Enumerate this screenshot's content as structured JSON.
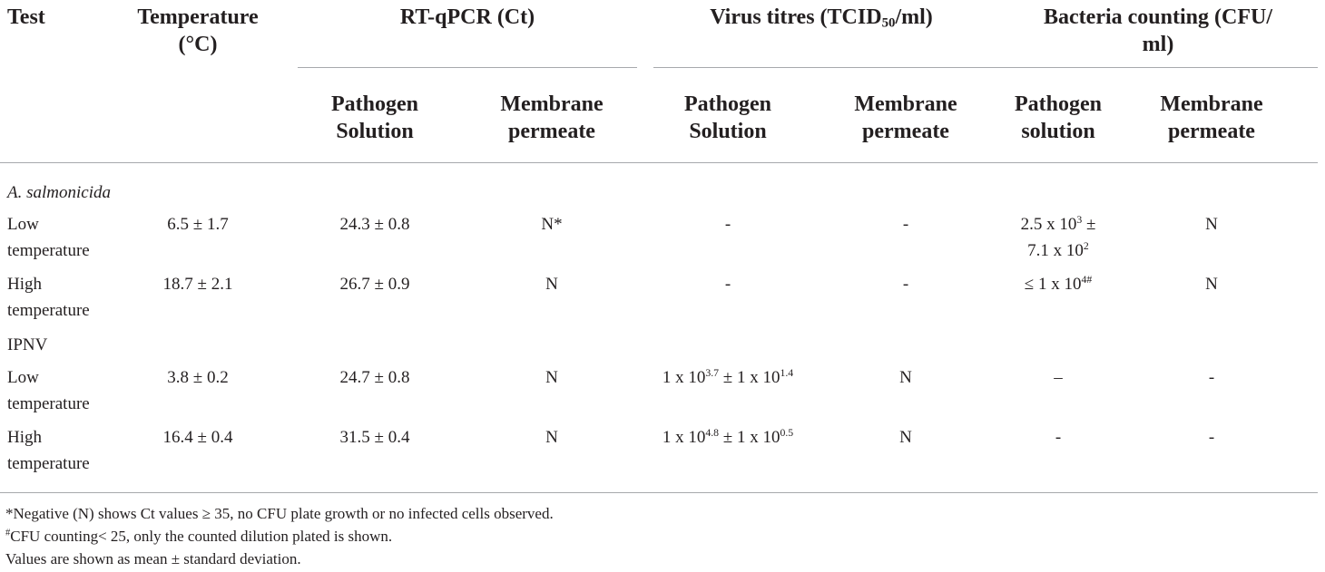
{
  "table": {
    "headers": {
      "test": "Test",
      "temperature_line1": "Temperature",
      "temperature_line2": "(°C)",
      "rtqpcr": "RT-qPCR (Ct)",
      "virus_pre": "Virus titres (TCID",
      "virus_sub": "50",
      "virus_post": "/ml)",
      "bacteria_line1": "Bacteria counting (CFU/",
      "bacteria_line2": "ml)",
      "sub": {
        "pathogen_solution_1": "Pathogen",
        "pathogen_solution_2": "Solution",
        "membrane_1": "Membrane",
        "membrane_2": "permeate",
        "pathogen_solution_lower_2": "solution"
      }
    },
    "groups": {
      "a_salmonicida": "A. salmonicida",
      "ipnv": "IPNV"
    },
    "rows": {
      "as_low": {
        "label1": "Low",
        "label2": "temperature",
        "temperature": "6.5 ± 1.7",
        "rt_pathogen": "24.3 ± 0.8",
        "rt_membrane": "N*",
        "virus_pathogen": "-",
        "virus_membrane": "-",
        "bact_pathogen_a": "2.5 x 10",
        "bact_pathogen_a_sup": "3",
        "bact_pathogen_b": " ±",
        "bact_pathogen_c": "7.1 x 10",
        "bact_pathogen_c_sup": "2",
        "bact_membrane": "N"
      },
      "as_high": {
        "label1": "High",
        "label2": "temperature",
        "temperature": "18.7 ± 2.1",
        "rt_pathogen": "26.7 ± 0.9",
        "rt_membrane": "N",
        "virus_pathogen": "-",
        "virus_membrane": "-",
        "bact_pathogen": "≤ 1 x 10",
        "bact_pathogen_sup": "4#",
        "bact_membrane": "N"
      },
      "ipnv_low": {
        "label1": "Low",
        "label2": "temperature",
        "temperature": "3.8 ± 0.2",
        "rt_pathogen": "24.7 ± 0.8",
        "rt_membrane": "N",
        "virus_a": "1 x 10",
        "virus_a_sup": "3.7",
        "virus_b": " ± 1 x 10",
        "virus_b_sup": "1.4",
        "virus_membrane": "N",
        "bact_pathogen": "–",
        "bact_membrane": "-"
      },
      "ipnv_high": {
        "label1": "High",
        "label2": "temperature",
        "temperature": "16.4 ± 0.4",
        "rt_pathogen": "31.5 ± 0.4",
        "rt_membrane": "N",
        "virus_a": "1 x 10",
        "virus_a_sup": "4.8",
        "virus_b": " ± 1 x 10",
        "virus_b_sup": "0.5",
        "virus_membrane": "N",
        "bact_pathogen": "-",
        "bact_membrane": "-"
      }
    },
    "footnotes": {
      "note1": "*Negative (N) shows Ct values ≥ 35, no CFU plate growth or no infected cells observed.",
      "note2_sup": "#",
      "note2": "CFU counting< 25, only the counted dilution plated is shown.",
      "note3": "Values are shown as mean ± standard deviation."
    }
  }
}
